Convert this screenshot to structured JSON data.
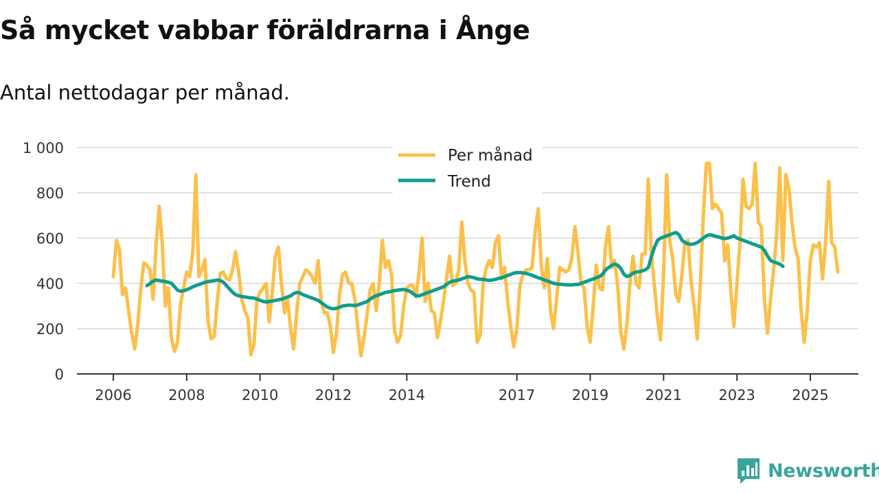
{
  "title": "Så mycket vabbar föräldrarna i Ånge",
  "subtitle": "Antal nettodagar per månad.",
  "brand": {
    "name": "Newsworthy",
    "color": "#3aa59b"
  },
  "chart_data": {
    "type": "line",
    "ylim": [
      0,
      1000
    ],
    "yticks": [
      0,
      200,
      400,
      600,
      800,
      1000
    ],
    "ytick_labels": [
      "0",
      "200",
      "400",
      "600",
      "800",
      "1 000"
    ],
    "xlim": [
      2006,
      2025.6
    ],
    "xticks": [
      2006,
      2008,
      2010,
      2012,
      2014,
      2017,
      2019,
      2021,
      2023,
      2025
    ],
    "xtick_labels": [
      "2006",
      "2008",
      "2010",
      "2012",
      "2014",
      "2017",
      "2019",
      "2021",
      "2023",
      "2025"
    ],
    "legend_position": "top-center",
    "series": [
      {
        "name": "Per månad",
        "color": "#fbc04a",
        "x_start": 2006.0,
        "x_step": 0.08333,
        "values": [
          430,
          590,
          550,
          350,
          380,
          280,
          180,
          110,
          220,
          380,
          490,
          480,
          460,
          330,
          570,
          740,
          580,
          300,
          380,
          160,
          100,
          140,
          310,
          380,
          450,
          430,
          540,
          880,
          430,
          460,
          505,
          230,
          155,
          165,
          320,
          445,
          450,
          420,
          415,
          460,
          540,
          450,
          330,
          280,
          250,
          85,
          130,
          330,
          360,
          380,
          400,
          230,
          360,
          520,
          560,
          400,
          270,
          330,
          200,
          110,
          270,
          400,
          430,
          460,
          450,
          430,
          400,
          500,
          320,
          270,
          270,
          210,
          95,
          180,
          350,
          440,
          450,
          400,
          400,
          330,
          200,
          80,
          160,
          260,
          370,
          400,
          280,
          400,
          590,
          470,
          500,
          440,
          190,
          140,
          170,
          300,
          380,
          390,
          390,
          340,
          450,
          600,
          320,
          400,
          280,
          270,
          160,
          230,
          320,
          420,
          520,
          390,
          400,
          460,
          670,
          500,
          400,
          370,
          360,
          140,
          170,
          400,
          470,
          500,
          470,
          580,
          610,
          420,
          470,
          320,
          210,
          120,
          200,
          390,
          440,
          460,
          460,
          470,
          630,
          730,
          480,
          380,
          510,
          280,
          200,
          330,
          470,
          460,
          450,
          460,
          510,
          650,
          540,
          400,
          380,
          210,
          140,
          300,
          480,
          380,
          370,
          560,
          650,
          470,
          500,
          390,
          185,
          110,
          220,
          400,
          520,
          400,
          380,
          530,
          530,
          860,
          530,
          390,
          250,
          150,
          440,
          880,
          590,
          510,
          350,
          320,
          440,
          580,
          590,
          410,
          300,
          155,
          390,
          700,
          930,
          930,
          730,
          750,
          730,
          710,
          500,
          570,
          370,
          210,
          400,
          580,
          860,
          740,
          730,
          750,
          930,
          670,
          650,
          330,
          180,
          330,
          460,
          620,
          910,
          500,
          880,
          820,
          670,
          560,
          510,
          280,
          140,
          280,
          500,
          570,
          560,
          580,
          420,
          580,
          850,
          580,
          560,
          450
        ]
      },
      {
        "name": "Trend",
        "color": "#119c8e",
        "x_start": 2006.92,
        "x_step": 0.08333,
        "values": [
          390,
          400,
          410,
          415,
          412,
          410,
          408,
          405,
          400,
          385,
          370,
          365,
          368,
          372,
          378,
          385,
          390,
          395,
          400,
          405,
          408,
          410,
          412,
          415,
          412,
          405,
          390,
          375,
          360,
          350,
          345,
          342,
          340,
          338,
          336,
          335,
          330,
          325,
          320,
          318,
          320,
          322,
          325,
          328,
          330,
          335,
          340,
          345,
          355,
          360,
          358,
          350,
          345,
          340,
          335,
          330,
          325,
          315,
          305,
          295,
          290,
          288,
          290,
          295,
          300,
          302,
          304,
          303,
          302,
          305,
          310,
          315,
          320,
          330,
          340,
          345,
          350,
          355,
          360,
          362,
          365,
          368,
          370,
          372,
          373,
          370,
          365,
          355,
          345,
          345,
          350,
          355,
          360,
          365,
          370,
          375,
          380,
          385,
          395,
          405,
          410,
          412,
          415,
          420,
          425,
          430,
          428,
          425,
          420,
          418,
          418,
          415,
          413,
          415,
          418,
          422,
          425,
          430,
          435,
          440,
          445,
          448,
          448,
          446,
          444,
          440,
          435,
          430,
          425,
          420,
          415,
          410,
          405,
          400,
          398,
          396,
          395,
          394,
          393,
          393,
          395,
          395,
          400,
          405,
          410,
          415,
          420,
          425,
          430,
          440,
          460,
          470,
          480,
          485,
          480,
          465,
          440,
          430,
          435,
          445,
          450,
          452,
          455,
          460,
          470,
          520,
          560,
          590,
          600,
          605,
          610,
          615,
          620,
          625,
          615,
          590,
          580,
          575,
          572,
          575,
          580,
          590,
          600,
          610,
          615,
          612,
          608,
          605,
          600,
          598,
          600,
          605,
          610,
          600,
          595,
          590,
          585,
          580,
          575,
          570,
          565,
          560,
          545,
          520,
          500,
          495,
          490,
          485,
          475
        ]
      }
    ]
  }
}
